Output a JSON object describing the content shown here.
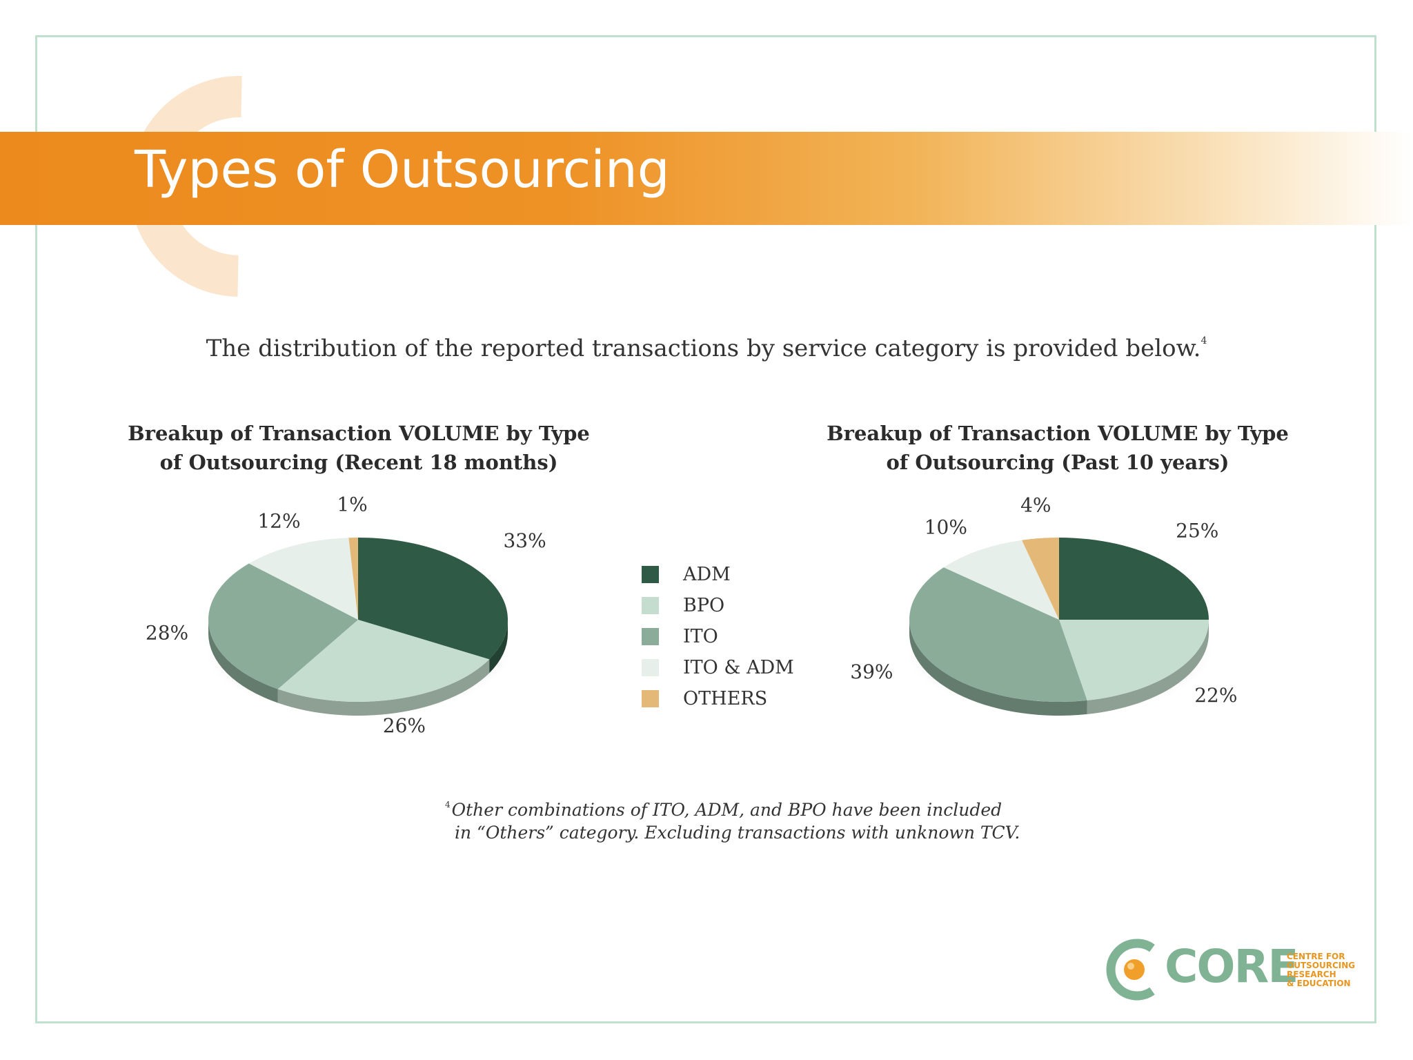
{
  "page": {
    "title": "Types of Outsourcing",
    "intro": "The distribution of the reported transactions by service category is provided below.",
    "intro_footnote_ref": "4",
    "footnote_ref": "4",
    "footnote_line1": "Other combinations of ITO, ADM, and BPO have been included",
    "footnote_line2": "in “Others” category. Excluding transactions with unknown TCV."
  },
  "logo": {
    "word": "CORE",
    "tagline": "CENTRE FOR\nOUTSOURCING\nRESEARCH\n& EDUCATION",
    "colors": {
      "green": "#7fb394",
      "orange": "#e8961f"
    }
  },
  "colors": {
    "title_band": "#ec8a1d",
    "frame": "#bfe0cc"
  },
  "legend": [
    {
      "label": "ADM",
      "color": "#2f5a46"
    },
    {
      "label": "BPO",
      "color": "#c5ddce"
    },
    {
      "label": "ITO",
      "color": "#8aac99"
    },
    {
      "label": "ITO & ADM",
      "color": "#e6efea"
    },
    {
      "label": "OTHERS",
      "color": "#e4b877"
    }
  ],
  "chart_data": [
    {
      "type": "pie",
      "title": "Breakup of Transaction VOLUME by Type of Outsourcing (Recent 18 months)",
      "title_line1": "Breakup of Transaction VOLUME by Type",
      "title_line2": "of Outsourcing (Recent 18 months)",
      "slices": [
        {
          "label": "ADM",
          "value": 33,
          "text": "33%"
        },
        {
          "label": "BPO",
          "value": 26,
          "text": "26%"
        },
        {
          "label": "ITO",
          "value": 28,
          "text": "28%"
        },
        {
          "label": "ITO & ADM",
          "value": 12,
          "text": "12%"
        },
        {
          "label": "OTHERS",
          "value": 1,
          "text": "1%"
        }
      ]
    },
    {
      "type": "pie",
      "title": "Breakup of Transaction VOLUME by Type of Outsourcing (Past 10 years)",
      "title_line1": "Breakup of Transaction VOLUME by Type",
      "title_line2": "of Outsourcing (Past 10 years)",
      "slices": [
        {
          "label": "ADM",
          "value": 25,
          "text": "25%"
        },
        {
          "label": "BPO",
          "value": 22,
          "text": "22%"
        },
        {
          "label": "ITO",
          "value": 39,
          "text": "39%"
        },
        {
          "label": "ITO & ADM",
          "value": 10,
          "text": "10%"
        },
        {
          "label": "OTHERS",
          "value": 4,
          "text": "4%"
        }
      ]
    }
  ]
}
